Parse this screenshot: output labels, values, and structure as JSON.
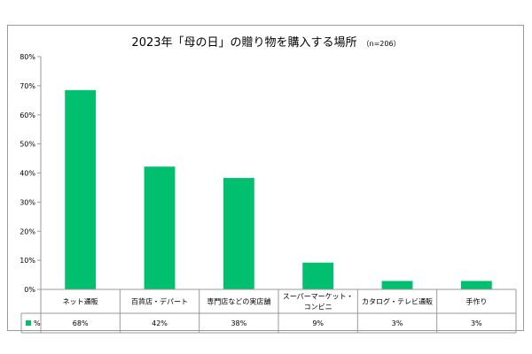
{
  "chart_data": {
    "type": "bar",
    "title": "2023年「母の日」の贈り物を購入する場所",
    "subtitle": "（n=206）",
    "categories": [
      [
        "ネット通販"
      ],
      [
        "百貨店・デパート"
      ],
      [
        "専門店などの実店舗"
      ],
      [
        "スーパーマーケット・",
        "コンビニ"
      ],
      [
        "カタログ・テレビ通販"
      ],
      [
        "手作り"
      ]
    ],
    "series": [
      {
        "name": "%",
        "values": [
          68.5,
          42.2,
          38.3,
          9.2,
          2.9,
          2.9
        ],
        "labels": [
          "68%",
          "42%",
          "38%",
          "9%",
          "3%",
          "3%"
        ],
        "color": "#00c070"
      }
    ],
    "yticks": [
      "0%",
      "10%",
      "20%",
      "30%",
      "40%",
      "50%",
      "60%",
      "70%",
      "80%"
    ],
    "ylim": [
      0,
      80
    ],
    "grid": false,
    "legend": "data-table-left"
  }
}
